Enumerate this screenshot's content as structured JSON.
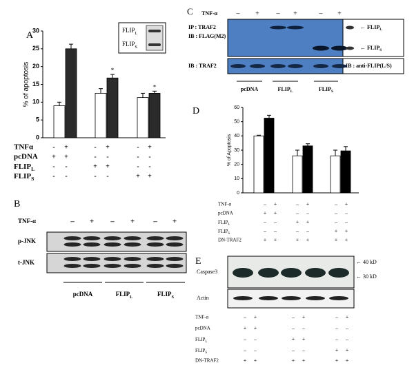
{
  "chart_data": [
    {
      "type": "bar",
      "panel": "A",
      "y_label": "% of apoptosis",
      "categories": [
        null,
        null,
        null
      ],
      "series": [
        {
          "color": "#ffffff",
          "values": [
            9,
            12.5,
            11.3
          ],
          "errors": [
            1,
            1.3,
            1.2
          ]
        },
        {
          "color": "#2b2b2b",
          "values": [
            25,
            16.8,
            12.5
          ],
          "errors": [
            1.3,
            1,
            0.6
          ],
          "marks": [
            null,
            "*",
            "*"
          ]
        }
      ],
      "ylim": [
        0,
        30
      ],
      "yticks": [
        0,
        5,
        10,
        15,
        20,
        25,
        30
      ],
      "inset": [
        {
          "text": "FLIP",
          "sub": "L"
        },
        {
          "text": "FLIP",
          "sub": "S"
        }
      ],
      "conditions": [
        {
          "label": "TNFα",
          "signs": [
            "-",
            "+",
            "-",
            "+",
            "-",
            "+"
          ]
        },
        {
          "label": "pcDNA",
          "signs": [
            "+",
            "+",
            "-",
            "-",
            "-",
            "-"
          ]
        },
        {
          "label": {
            "text": "FLIP",
            "sub": "L"
          },
          "signs": [
            "-",
            "-",
            "+",
            "+",
            "-",
            "-"
          ]
        },
        {
          "label": {
            "text": "FLIP",
            "sub": "S"
          },
          "signs": [
            "-",
            "-",
            "-",
            "-",
            "+",
            "+"
          ]
        }
      ]
    },
    {
      "type": "bar",
      "panel": "D",
      "y_label": "% of Apoptosis",
      "categories": [
        null,
        null,
        null
      ],
      "series": [
        {
          "color": "#ffffff",
          "values": [
            40,
            26,
            26
          ],
          "errors": [
            0.5,
            4,
            4
          ]
        },
        {
          "color": "#000000",
          "values": [
            52.5,
            33,
            29.5
          ],
          "errors": [
            2,
            1.5,
            3
          ]
        }
      ],
      "ylim": [
        0,
        60
      ],
      "yticks": [
        0,
        10,
        20,
        30,
        40,
        50,
        60
      ],
      "conditions": [
        {
          "label": "TNF-α",
          "signs": [
            "–",
            "+",
            "–",
            "+",
            "–",
            "+"
          ]
        },
        {
          "label": "pcDNA",
          "signs": [
            "+",
            "+",
            "–",
            "–",
            "–",
            "–"
          ]
        },
        {
          "label": {
            "text": "FLIP",
            "sub": "L"
          },
          "signs": [
            "–",
            "–",
            "+",
            "+",
            "–",
            "–"
          ]
        },
        {
          "label": {
            "text": "FLIP",
            "sub": "S"
          },
          "signs": [
            "–",
            "–",
            "–",
            "–",
            "+",
            "+"
          ]
        },
        {
          "label": "DN-TRAF2",
          "signs": [
            "+",
            "+",
            "+",
            "+",
            "+",
            "+"
          ]
        }
      ]
    }
  ],
  "blots": {
    "B": {
      "panel": "B",
      "treatment": "TNF-α",
      "signs": [
        "–",
        "+",
        "–",
        "+",
        "–",
        "+"
      ],
      "rows": [
        "p-JNK",
        "t-JNK"
      ],
      "groups": [
        "pcDNA",
        {
          "text": "FLIP",
          "sub": "L"
        },
        {
          "text": "FLIP",
          "sub": "S"
        }
      ]
    },
    "C": {
      "panel": "C",
      "treatment": "TNF-α",
      "signs": [
        "–",
        "+",
        "–",
        "+",
        "–",
        "+"
      ],
      "ip": "IP : TRAF2",
      "ib_top": "IB : FLAG(M2)",
      "ib_bottom": "IB : TRAF2",
      "side_ib": "IB : anti-FLIP(L/S)",
      "side_bands": [
        {
          "text": "← FLIP",
          "sub": "L"
        },
        {
          "text": "← FLIP",
          "sub": "S"
        }
      ],
      "groups": [
        "pcDNA",
        {
          "text": "FLIP",
          "sub": "L"
        },
        {
          "text": "FLIP",
          "sub": "S"
        }
      ]
    },
    "E": {
      "panel": "E",
      "rows": [
        "Caspase3",
        "Actin"
      ],
      "markers": [
        "← 40 kD",
        "← 30 kD"
      ],
      "conditions": [
        {
          "label": "TNF-α",
          "signs": [
            "–",
            "+",
            "–",
            "+",
            "–",
            "+"
          ]
        },
        {
          "label": "pcDNA",
          "signs": [
            "+",
            "+",
            "–",
            "–",
            "–",
            "–"
          ]
        },
        {
          "label": {
            "text": "FLIP",
            "sub": "L"
          },
          "signs": [
            "–",
            "–",
            "+",
            "+",
            "–",
            "–"
          ]
        },
        {
          "label": {
            "text": "FLIP",
            "sub": "S"
          },
          "signs": [
            "–",
            "–",
            "–",
            "–",
            "+",
            "+"
          ]
        },
        {
          "label": "DN-TRAF2",
          "signs": [
            "+",
            "+",
            "+",
            "+",
            "+",
            "+"
          ]
        }
      ]
    }
  }
}
